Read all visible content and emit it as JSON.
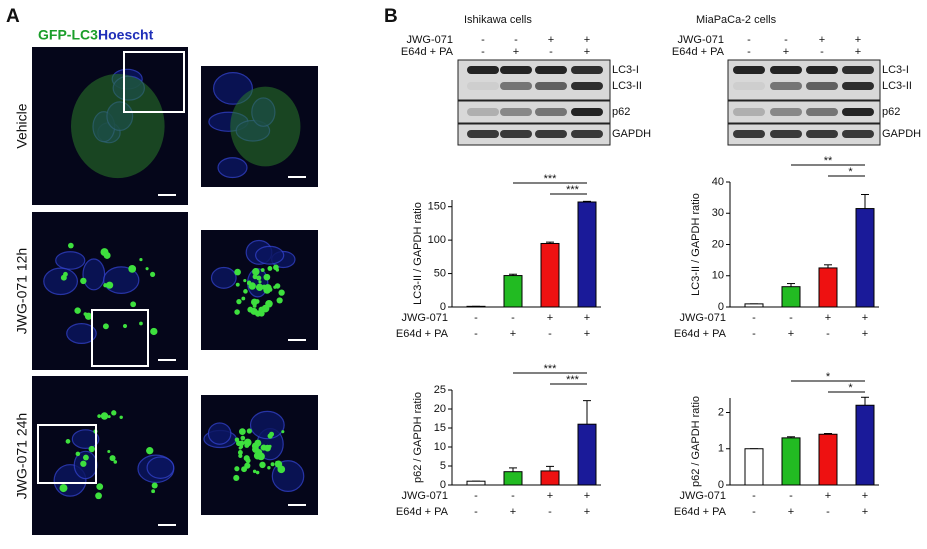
{
  "panel_a": {
    "label": "A",
    "legend": [
      "GFP-LC3",
      "Hoescht"
    ],
    "rows": [
      "Vehicle",
      "JWG-071 12h",
      "JWG-071 24h"
    ]
  },
  "panel_b": {
    "label": "B",
    "blots": [
      {
        "title": "Ishikawa cells",
        "conditions": [
          {
            "name": "JWG-071",
            "signs": [
              "-",
              "-",
              "+",
              "+"
            ]
          },
          {
            "name": "E64d + PA",
            "signs": [
              "-",
              "+",
              "-",
              "+"
            ]
          }
        ],
        "bands": [
          "LC3-I",
          "LC3-II",
          "p62",
          "GAPDH"
        ]
      },
      {
        "title": "MiaPaCa-2 cells",
        "conditions": [
          {
            "name": "JWG-071",
            "signs": [
              "-",
              "-",
              "+",
              "+"
            ]
          },
          {
            "name": "E64d + PA",
            "signs": [
              "-",
              "+",
              "-",
              "+"
            ]
          }
        ],
        "bands": [
          "LC3-I",
          "LC3-II",
          "p62",
          "GAPDH"
        ]
      }
    ]
  },
  "chart_data": [
    {
      "type": "bar",
      "y_label": "LC3-II / GAPDH  ratio",
      "values": [
        1,
        47,
        95,
        157
      ],
      "errors": [
        0,
        2,
        2,
        1
      ],
      "colors": [
        "#ffffff",
        "#22bb22",
        "#ee1111",
        "#1a1a99"
      ],
      "ylim": [
        0,
        160
      ],
      "yticks": [
        0,
        50,
        100,
        150
      ],
      "conditions": [
        {
          "name": "JWG-071",
          "signs": [
            "-",
            "-",
            "+",
            "+"
          ]
        },
        {
          "name": "E64d + PA",
          "signs": [
            "-",
            "+",
            "-",
            "+"
          ]
        }
      ],
      "annotations": [
        {
          "from": 1,
          "to": 3,
          "label": "***"
        },
        {
          "from": 2,
          "to": 3,
          "label": "***"
        }
      ]
    },
    {
      "type": "bar",
      "y_label": "LC3-II / GAPDH  ratio",
      "values": [
        1,
        6.5,
        12.5,
        31.5
      ],
      "errors": [
        0,
        1,
        1,
        4.5
      ],
      "colors": [
        "#ffffff",
        "#22bb22",
        "#ee1111",
        "#1a1a99"
      ],
      "ylim": [
        0,
        40
      ],
      "yticks": [
        0,
        10,
        20,
        30,
        40
      ],
      "conditions": [
        {
          "name": "JWG-071",
          "signs": [
            "-",
            "-",
            "+",
            "+"
          ]
        },
        {
          "name": "E64d + PA",
          "signs": [
            "-",
            "+",
            "-",
            "+"
          ]
        }
      ],
      "annotations": [
        {
          "from": 1,
          "to": 3,
          "label": "**"
        },
        {
          "from": 2,
          "to": 3,
          "label": "*"
        }
      ]
    },
    {
      "type": "bar",
      "y_label": "p62 / GAPDH  ratio",
      "values": [
        1,
        3.5,
        3.7,
        16
      ],
      "errors": [
        0,
        1,
        1.2,
        6.2
      ],
      "colors": [
        "#ffffff",
        "#22bb22",
        "#ee1111",
        "#1a1a99"
      ],
      "ylim": [
        0,
        25
      ],
      "yticks": [
        0,
        5,
        10,
        15,
        20,
        25
      ],
      "conditions": [
        {
          "name": "JWG-071",
          "signs": [
            "-",
            "-",
            "+",
            "+"
          ]
        },
        {
          "name": "E64d + PA",
          "signs": [
            "-",
            "+",
            "-",
            "+"
          ]
        }
      ],
      "annotations": [
        {
          "from": 1,
          "to": 3,
          "label": "***"
        },
        {
          "from": 2,
          "to": 3,
          "label": "***"
        }
      ]
    },
    {
      "type": "bar",
      "y_label": "p62 / GAPDH  ratio",
      "values": [
        1,
        1.3,
        1.4,
        2.2
      ],
      "errors": [
        0,
        0.03,
        0.02,
        0.22
      ],
      "colors": [
        "#ffffff",
        "#22bb22",
        "#ee1111",
        "#1a1a99"
      ],
      "ylim": [
        0,
        2.4
      ],
      "yticks": [
        0,
        1,
        2
      ],
      "conditions": [
        {
          "name": "JWG-071",
          "signs": [
            "-",
            "-",
            "+",
            "+"
          ]
        },
        {
          "name": "E64d + PA",
          "signs": [
            "-",
            "+",
            "-",
            "+"
          ]
        }
      ],
      "annotations": [
        {
          "from": 1,
          "to": 3,
          "label": "*"
        },
        {
          "from": 2,
          "to": 3,
          "label": "*"
        }
      ]
    }
  ]
}
